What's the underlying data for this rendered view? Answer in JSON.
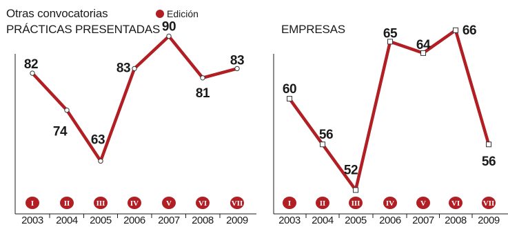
{
  "supertitle": "Otras convocatorias",
  "legend": {
    "label": "Edición",
    "color": "#b11f24"
  },
  "colors": {
    "line": "#b11f24",
    "axis": "#1a1a1a",
    "badge": "#b11f24",
    "badge_text": "#ffffff",
    "marker_fill": "#ffffff"
  },
  "chart_data": [
    {
      "type": "line",
      "title": "PRÁCTICAS PRESENTADAS",
      "categories": [
        "2003",
        "2004",
        "2005",
        "2006",
        "2007",
        "2008",
        "2009"
      ],
      "editions": [
        "I",
        "II",
        "III",
        "IV",
        "V",
        "VI",
        "VII"
      ],
      "series": [
        {
          "name": "Edición",
          "values": [
            82,
            74,
            63,
            83,
            90,
            81,
            83
          ]
        }
      ],
      "ylim": [
        55,
        95
      ],
      "marker": "circle",
      "grid": false
    },
    {
      "type": "line",
      "title": "EMPRESAS",
      "categories": [
        "2003",
        "2004",
        "2005",
        "2006",
        "2007",
        "2008",
        "2009"
      ],
      "editions": [
        "I",
        "II",
        "III",
        "IV",
        "V",
        "VI",
        "VII"
      ],
      "series": [
        {
          "name": "Edición",
          "values": [
            60,
            56,
            52,
            65,
            64,
            66,
            56
          ]
        }
      ],
      "ylim": [
        51.3,
        67.5
      ],
      "marker": "square",
      "grid": false
    }
  ]
}
